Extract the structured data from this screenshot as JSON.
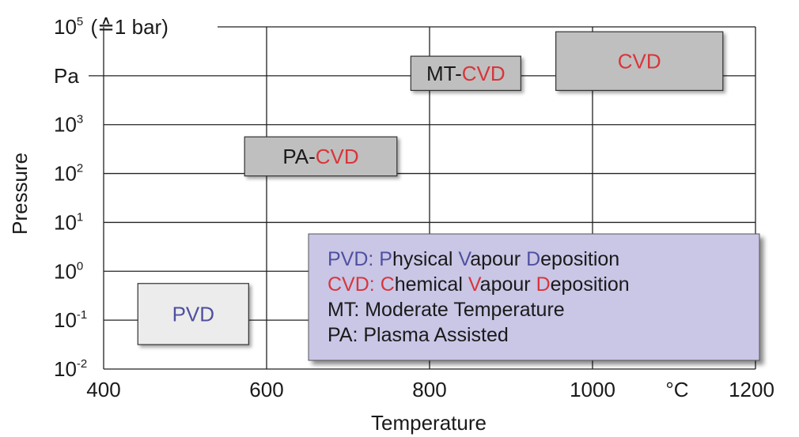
{
  "colors": {
    "cvd_red": "#d9353a",
    "pvd_blue": "#5050a0",
    "text_dark": "#1a1a1a",
    "box_gray": "#bfbfbf",
    "box_light": "#ececec",
    "legend_bg": "#c9c6e6"
  },
  "chart_data": {
    "type": "range-box",
    "xlabel": "Temperature",
    "ylabel": "Pressure",
    "x_unit_label": "°C",
    "xlim": [
      400,
      1200
    ],
    "ylim_log10": [
      -2,
      5
    ],
    "grid": true,
    "x_ticks": [
      "400",
      "600",
      "800",
      "1000",
      "1200"
    ],
    "x_tick_values": [
      400,
      600,
      800,
      1000,
      1200
    ],
    "y_ticks": [
      {
        "log": 5,
        "base": "10",
        "exp": "5",
        "suffix": " (≙1 bar)"
      },
      {
        "log": 4,
        "base": "Pa",
        "exp": "",
        "suffix": ""
      },
      {
        "log": 3,
        "base": "10",
        "exp": "3",
        "suffix": ""
      },
      {
        "log": 2,
        "base": "10",
        "exp": "2",
        "suffix": ""
      },
      {
        "log": 1,
        "base": "10",
        "exp": "1",
        "suffix": ""
      },
      {
        "log": 0,
        "base": "10",
        "exp": "0",
        "suffix": ""
      },
      {
        "log": -1,
        "base": "10",
        "exp": "-1",
        "suffix": ""
      },
      {
        "log": -2,
        "base": "10",
        "exp": "-2",
        "suffix": ""
      }
    ],
    "regions": [
      {
        "key": "cvd",
        "parts": [
          {
            "text": "CVD",
            "color": "red"
          }
        ],
        "style": "gray",
        "x": [
          955,
          1160
        ],
        "log_p": [
          3.7,
          4.9
        ]
      },
      {
        "key": "mt-cvd",
        "parts": [
          {
            "text": "MT-",
            "color": "dark"
          },
          {
            "text": "CVD",
            "color": "red"
          }
        ],
        "style": "gray",
        "x": [
          777,
          912
        ],
        "log_p": [
          3.7,
          4.4
        ]
      },
      {
        "key": "pa-cvd",
        "parts": [
          {
            "text": "PA-",
            "color": "dark"
          },
          {
            "text": "CVD",
            "color": "red"
          }
        ],
        "style": "gray",
        "x": [
          573,
          760
        ],
        "log_p": [
          1.95,
          2.75
        ]
      },
      {
        "key": "pvd",
        "parts": [
          {
            "text": "PVD",
            "color": "blue"
          }
        ],
        "style": "light",
        "x": [
          442,
          578
        ],
        "log_p": [
          -1.5,
          -0.25
        ]
      }
    ],
    "legend": {
      "placement": "bottom-right",
      "entries": [
        {
          "parts": [
            {
              "text": "PVD: ",
              "color": "blue"
            },
            {
              "text": "P",
              "color": "blue"
            },
            {
              "text": "hysical ",
              "color": "dark"
            },
            {
              "text": "V",
              "color": "blue"
            },
            {
              "text": "apour ",
              "color": "dark"
            },
            {
              "text": "D",
              "color": "blue"
            },
            {
              "text": "eposition",
              "color": "dark"
            }
          ]
        },
        {
          "parts": [
            {
              "text": "CVD: ",
              "color": "red"
            },
            {
              "text": "C",
              "color": "red"
            },
            {
              "text": "hemical ",
              "color": "dark"
            },
            {
              "text": "V",
              "color": "red"
            },
            {
              "text": "apour ",
              "color": "dark"
            },
            {
              "text": "D",
              "color": "red"
            },
            {
              "text": "eposition",
              "color": "dark"
            }
          ]
        },
        {
          "parts": [
            {
              "text": "MT: Moderate Temperature",
              "color": "dark"
            }
          ]
        },
        {
          "parts": [
            {
              "text": "PA: Plasma Assisted",
              "color": "dark"
            }
          ]
        }
      ]
    }
  }
}
